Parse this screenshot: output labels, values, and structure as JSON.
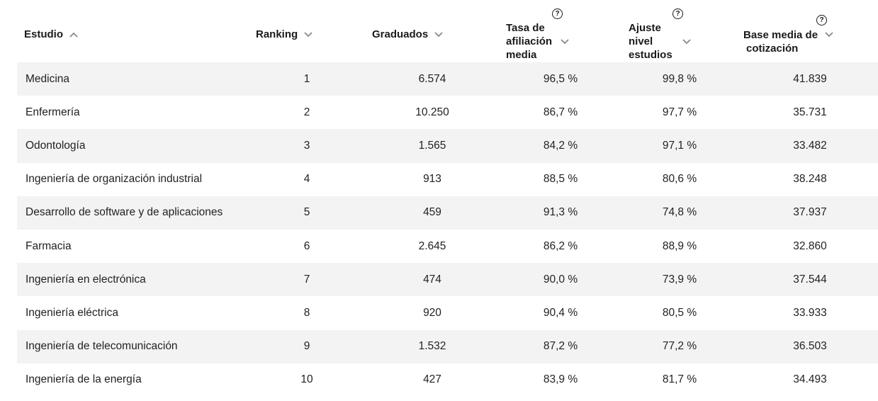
{
  "headers": {
    "estudio": "Estudio",
    "ranking": "Ranking",
    "graduados": "Graduados",
    "tasa": [
      "Tasa de",
      "afiliación",
      "media"
    ],
    "ajuste": [
      "Ajuste",
      "nivel",
      "estudios"
    ],
    "base": [
      "Base media de",
      "cotización"
    ]
  },
  "icons": {
    "sort_asc": "chevron-up-icon",
    "sort": "chevron-down-icon",
    "help": "question-circle-icon",
    "help_glyph": "?"
  },
  "rows": [
    {
      "estudio": "Medicina",
      "ranking": "1",
      "graduados": "6.574",
      "tasa": "96,5 %",
      "ajuste": "99,8 %",
      "base": "41.839"
    },
    {
      "estudio": "Enfermería",
      "ranking": "2",
      "graduados": "10.250",
      "tasa": "86,7 %",
      "ajuste": "97,7 %",
      "base": "35.731"
    },
    {
      "estudio": "Odontología",
      "ranking": "3",
      "graduados": "1.565",
      "tasa": "84,2 %",
      "ajuste": "97,1 %",
      "base": "33.482"
    },
    {
      "estudio": "Ingeniería de organización industrial",
      "ranking": "4",
      "graduados": "913",
      "tasa": "88,5 %",
      "ajuste": "80,6 %",
      "base": "38.248"
    },
    {
      "estudio": "Desarrollo de software y de aplicaciones",
      "ranking": "5",
      "graduados": "459",
      "tasa": "91,3 %",
      "ajuste": "74,8 %",
      "base": "37.937"
    },
    {
      "estudio": "Farmacia",
      "ranking": "6",
      "graduados": "2.645",
      "tasa": "86,2 %",
      "ajuste": "88,9 %",
      "base": "32.860"
    },
    {
      "estudio": "Ingeniería en electrónica",
      "ranking": "7",
      "graduados": "474",
      "tasa": "90,0 %",
      "ajuste": "73,9 %",
      "base": "37.544"
    },
    {
      "estudio": "Ingeniería eléctrica",
      "ranking": "8",
      "graduados": "920",
      "tasa": "90,4 %",
      "ajuste": "80,5 %",
      "base": "33.933"
    },
    {
      "estudio": "Ingeniería de telecomunicación",
      "ranking": "9",
      "graduados": "1.532",
      "tasa": "87,2 %",
      "ajuste": "77,2 %",
      "base": "36.503"
    },
    {
      "estudio": "Ingeniería de la energía",
      "ranking": "10",
      "graduados": "427",
      "tasa": "83,9 %",
      "ajuste": "81,7 %",
      "base": "34.493"
    }
  ]
}
